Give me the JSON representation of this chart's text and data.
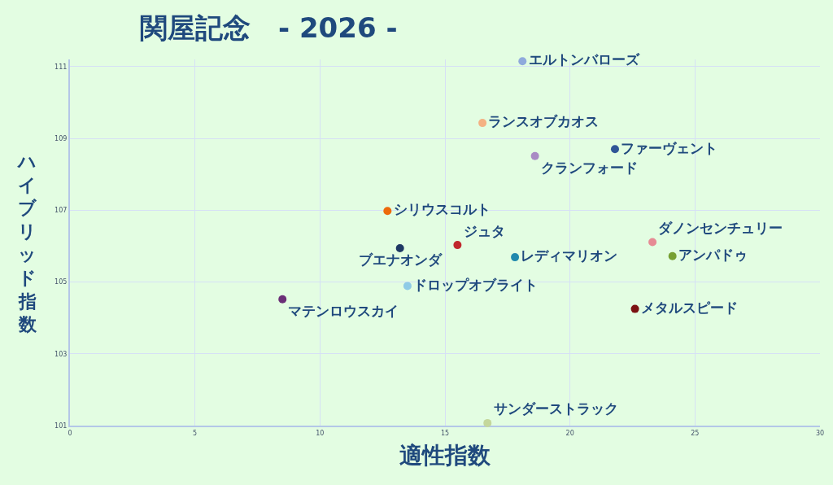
{
  "chart_data": {
    "type": "scatter",
    "title": "関屋記念　- 2026 -",
    "xlabel": "適性指数",
    "ylabel": "ハイブリッド指数",
    "xlim": [
      0,
      30
    ],
    "xticks": [
      0,
      5,
      10,
      15,
      20,
      25,
      30
    ],
    "ylim": [
      101,
      111.2
    ],
    "yticks": [
      101,
      103,
      105,
      107,
      109,
      111
    ],
    "grid": true,
    "marker": "circle",
    "series": [
      {
        "name": "エルトンバローズ",
        "color": "#8faadc",
        "x": [
          18.1
        ],
        "values": [
          111.15
        ]
      },
      {
        "name": "ランスオブカオス",
        "color": "#f4b183",
        "x": [
          16.5
        ],
        "values": [
          109.43
        ]
      },
      {
        "name": "ファーヴェント",
        "color": "#2f5597",
        "x": [
          21.8
        ],
        "values": [
          108.7
        ]
      },
      {
        "name": "クランフォード",
        "color": "#a98bc4",
        "x": [
          18.6
        ],
        "values": [
          108.51
        ]
      },
      {
        "name": "シリウスコルト",
        "color": "#ed6a0c",
        "x": [
          12.7
        ],
        "values": [
          106.98
        ]
      },
      {
        "name": "ダノンセンチュリー",
        "color": "#e68a94",
        "x": [
          23.3
        ],
        "values": [
          106.11
        ]
      },
      {
        "name": "ジュタ",
        "color": "#c0282d",
        "x": [
          15.5
        ],
        "values": [
          106.03
        ]
      },
      {
        "name": "ブエナオンダ",
        "color": "#1f3864",
        "x": [
          13.2
        ],
        "values": [
          105.94
        ]
      },
      {
        "name": "アンパドゥ",
        "color": "#77a033",
        "x": [
          24.1
        ],
        "values": [
          105.72
        ]
      },
      {
        "name": "レディマリオン",
        "color": "#2089ad",
        "x": [
          17.8
        ],
        "values": [
          105.69
        ]
      },
      {
        "name": "ドロップオブライト",
        "color": "#8fcbe6",
        "x": [
          13.5
        ],
        "values": [
          104.89
        ]
      },
      {
        "name": "マテンロウスカイ",
        "color": "#6b2f77",
        "x": [
          8.5
        ],
        "values": [
          104.52
        ]
      },
      {
        "name": "メタルスピード",
        "color": "#7b1212",
        "x": [
          22.6
        ],
        "values": [
          104.25
        ]
      },
      {
        "name": "サンダーストラック",
        "color": "#c4d79b",
        "x": [
          16.7
        ],
        "values": [
          101.07
        ]
      }
    ]
  }
}
